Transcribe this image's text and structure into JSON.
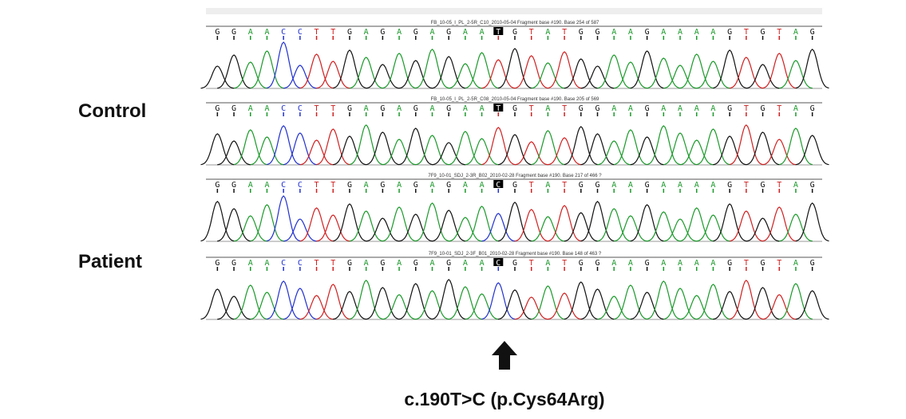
{
  "labels": {
    "control": "Control",
    "patient": "Patient",
    "mutation": "c.190T>C (p.Cys64Arg)"
  },
  "base_colors": {
    "A": "#1a9a2a",
    "C": "#2030d0",
    "G": "#111111",
    "T": "#d02020"
  },
  "panels": [
    {
      "header": "FB_10-05_I_PL_2-5R_C10_2010-05-04 Fragment base #190. Base 254 of 587",
      "bases": [
        "G",
        "G",
        "A",
        "A",
        "C",
        "C",
        "T",
        "T",
        "G",
        "A",
        "G",
        "A",
        "G",
        "A",
        "G",
        "A",
        "A",
        "T",
        "G",
        "T",
        "A",
        "T",
        "G",
        "G",
        "A",
        "A",
        "G",
        "A",
        "A",
        "A",
        "A",
        "G",
        "T",
        "G",
        "T",
        "A",
        "G"
      ]
    },
    {
      "header": "FB_10-05_I_PL_2-5R_C08_2010-05-04 Fragment base #190. Base 205 of 569",
      "bases": [
        "G",
        "G",
        "A",
        "A",
        "C",
        "C",
        "T",
        "T",
        "G",
        "A",
        "G",
        "A",
        "G",
        "A",
        "G",
        "A",
        "A",
        "T",
        "G",
        "T",
        "A",
        "T",
        "G",
        "G",
        "A",
        "A",
        "G",
        "A",
        "A",
        "A",
        "A",
        "G",
        "T",
        "G",
        "T",
        "A",
        "G"
      ]
    },
    {
      "header": "7F9_10-01_SDJ_2-3R_B02_2010-02-28 Fragment base #190. Base 217 of 466 ?",
      "bases": [
        "G",
        "G",
        "A",
        "A",
        "C",
        "C",
        "T",
        "T",
        "G",
        "A",
        "G",
        "A",
        "G",
        "A",
        "G",
        "A",
        "A",
        "C",
        "G",
        "T",
        "A",
        "T",
        "G",
        "G",
        "A",
        "A",
        "G",
        "A",
        "A",
        "A",
        "A",
        "G",
        "T",
        "G",
        "T",
        "A",
        "G"
      ]
    },
    {
      "header": "7F9_10-01_SDJ_2-3F_B01_2010-02-28 Fragment base #190. Base 148 of 463 ?",
      "bases": [
        "G",
        "G",
        "A",
        "A",
        "C",
        "C",
        "T",
        "T",
        "G",
        "A",
        "G",
        "A",
        "G",
        "A",
        "G",
        "A",
        "A",
        "C",
        "G",
        "T",
        "A",
        "T",
        "G",
        "G",
        "A",
        "A",
        "G",
        "A",
        "A",
        "A",
        "A",
        "G",
        "T",
        "G",
        "T",
        "A",
        "G"
      ]
    }
  ]
}
